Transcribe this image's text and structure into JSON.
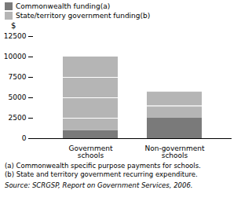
{
  "chart_data": {
    "type": "bar",
    "stacked": true,
    "categories": [
      "Government\nschools",
      "Non-government\nschools"
    ],
    "series": [
      {
        "name": "Commonwealth funding(a)",
        "color": "#7a7a7a",
        "values": [
          1000,
          2500
        ]
      },
      {
        "name": "State/territory government funding(b)",
        "color": "#b5b5b5",
        "values": [
          9000,
          3200
        ]
      }
    ],
    "separator_lines": [
      [
        2500,
        5000,
        7500
      ],
      [
        4000
      ]
    ],
    "ylabel": "$",
    "ylim": [
      0,
      12500
    ],
    "yticks": [
      0,
      2500,
      5000,
      7500,
      10000,
      12500
    ],
    "legend": "upper left",
    "notes": [
      "(a) Commonwealth specific purpose payments for schools.",
      "(b) State and territory government recurring expenditure."
    ],
    "source": "Source: SCRGSP, Report on Government Services, 2006."
  }
}
